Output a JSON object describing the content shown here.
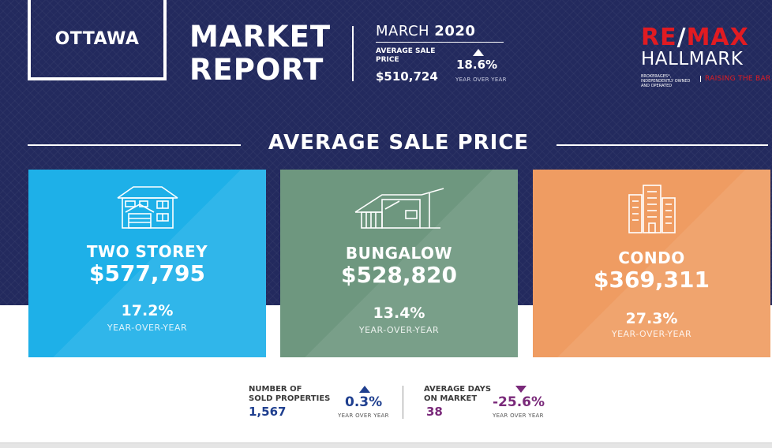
{
  "header": {
    "city": "OTTAWA",
    "title_line1": "MARKET",
    "title_line2": "REPORT",
    "month": "MARCH",
    "year": "2020",
    "avg_label_line1": "AVERAGE SALE",
    "avg_label_line2": "PRICE",
    "avg_value": "$510,724",
    "avg_change": "18.6%",
    "avg_change_label": "YEAR OVER YEAR"
  },
  "logo": {
    "brand_part1": "RE",
    "brand_slash": "/",
    "brand_part2": "MAX",
    "name": "HALLMARK",
    "fine_print": "BROKERAGES*, INDEPENDENTLY OWNED AND OPERATED",
    "tagline": "RAISING THE BAR"
  },
  "section": {
    "title": "AVERAGE SALE PRICE"
  },
  "cards": [
    {
      "name": "TWO STOREY",
      "price": "$577,795",
      "change": "17.2%",
      "change_label": "YEAR-OVER-YEAR",
      "color": "#1eb0e8",
      "icon": "two-storey-house-icon"
    },
    {
      "name": "BUNGALOW",
      "price": "$528,820",
      "change": "13.4%",
      "change_label": "YEAR-OVER-YEAR",
      "color": "#6e977f",
      "icon": "bungalow-icon"
    },
    {
      "name": "CONDO",
      "price": "$369,311",
      "change": "27.3%",
      "change_label": "YEAR-OVER-YEAR",
      "color": "#ef9c62",
      "icon": "condo-building-icon"
    }
  ],
  "stats": {
    "sold": {
      "label_line1": "NUMBER OF",
      "label_line2": "SOLD PROPERTIES",
      "value": "1,567",
      "change": "0.3%",
      "change_label": "YEAR OVER YEAR"
    },
    "dom": {
      "label_line1": "AVERAGE DAYS",
      "label_line2": "ON MARKET",
      "value": "38",
      "change": "-25.6%",
      "change_label": "YEAR OVER YEAR"
    }
  },
  "colors": {
    "navy": "#232a5e",
    "brand_red": "#e11b22",
    "stat_blue": "#1f3f8f",
    "stat_purple": "#7a2a7a"
  }
}
